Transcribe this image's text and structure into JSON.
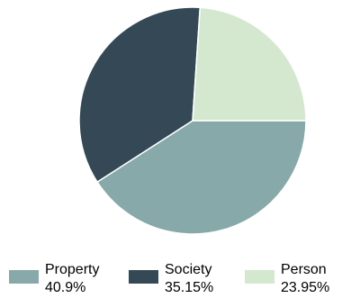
{
  "chart_data": {
    "type": "pie",
    "title": "",
    "slices": [
      {
        "label": "Property",
        "value": 40.9,
        "display": "40.9%",
        "color": "#87a9a9"
      },
      {
        "label": "Society",
        "value": 35.15,
        "display": "35.15%",
        "color": "#344955"
      },
      {
        "label": "Person",
        "value": 23.95,
        "display": "23.95%",
        "color": "#d4e8d0"
      }
    ],
    "start_angle_deg": 0,
    "direction": "clockwise",
    "legend_position": "bottom"
  }
}
